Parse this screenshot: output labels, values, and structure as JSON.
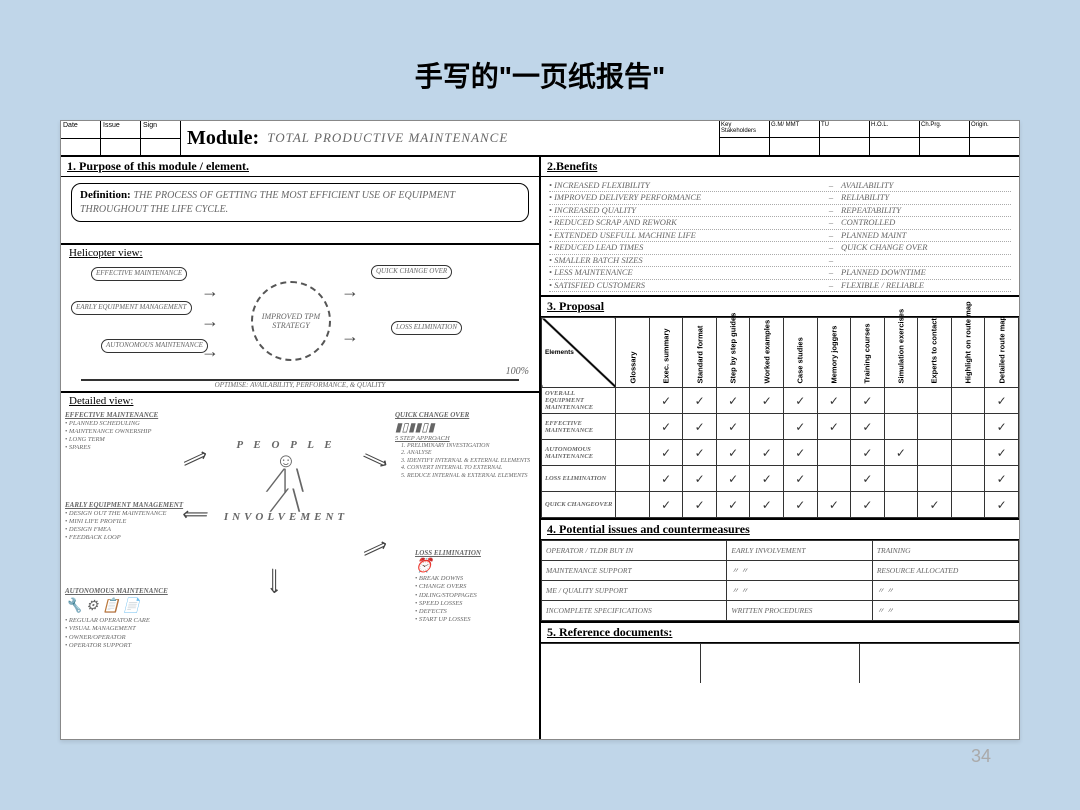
{
  "slide": {
    "title": "手写的\"一页纸报告\"",
    "page_num": "34"
  },
  "header": {
    "left_labels": [
      "Date",
      "Issue",
      "Sign"
    ],
    "module_label": "Module:",
    "module_value": "TOTAL PRODUCTIVE MAINTENANCE",
    "right_labels": [
      "Key Stakeholders",
      "G.M/ MMT",
      "TU",
      "H.O.L.",
      "Ch.Prg.",
      "Origin."
    ]
  },
  "s1": {
    "title": "1. Purpose of this module / element.",
    "def_label": "Definition:",
    "def_text": "THE PROCESS OF GETTING THE MOST EFFICIENT USE OF EQUIPMENT THROUGHOUT THE LIFE CYCLE."
  },
  "helicopter": {
    "title": "Helicopter view:",
    "center": "IMPROVED TPM STRATEGY",
    "bubbles": {
      "b1": "EFFECTIVE MAINTENANCE",
      "b2": "EARLY EQUIPMENT MANAGEMENT",
      "b3": "AUTONOMOUS MAINTENANCE",
      "b4": "QUICK CHANGE OVER",
      "b5": "LOSS ELIMINATION"
    },
    "bottom": "OPTIMISE: AVAILABILITY, PERFORMANCE, & QUALITY",
    "pct": "100%"
  },
  "detailed": {
    "title": "Detailed view:",
    "center_top": "P E O P L E",
    "center_bottom": "INVOLVEMENT",
    "blocks": {
      "nw": {
        "h": "EFFECTIVE MAINTENANCE",
        "items": [
          "PLANNED SCHEDULING",
          "MAINTENANCE OWNERSHIP",
          "LONG TERM",
          "SPARES"
        ]
      },
      "w": {
        "h": "EARLY EQUIPMENT MANAGEMENT",
        "items": [
          "DESIGN OUT THE MAINTENANCE",
          "MINI LIFE PROFILE",
          "DESIGN FMEA",
          "FEEDBACK LOOP"
        ]
      },
      "sw": {
        "h": "AUTONOMOUS MAINTENANCE",
        "items": [
          "REGULAR OPERATOR CARE",
          "VISUAL MANAGEMENT",
          "OWNER/OPERATOR",
          "OPERATOR SUPPORT"
        ]
      },
      "ne": {
        "h": "QUICK CHANGE OVER",
        "sub": "5 STEP APPROACH",
        "items": [
          "PRELIMINARY INVESTIGATION",
          "ANALYSE",
          "IDENTIFY INTERNAL & EXTERNAL ELEMENTS",
          "CONVERT INTERNAL TO EXTERNAL",
          "REDUCE INTERNAL & EXTERNAL ELEMENTS"
        ]
      },
      "se": {
        "h": "LOSS ELIMINATION",
        "items": [
          "BREAK DOWNS",
          "CHANGE OVERS",
          "IDLING/STOPPAGES",
          "SPEED LOSSES",
          "DEFECTS",
          "START UP LOSSES"
        ]
      }
    }
  },
  "benefits": {
    "title": "2.Benefits",
    "rows": [
      {
        "l": "• INCREASED FLEXIBILITY",
        "r": "AVAILABILITY"
      },
      {
        "l": "• IMPROVED DELIVERY PERFORMANCE",
        "r": "RELIABILITY"
      },
      {
        "l": "• INCREASED QUALITY",
        "r": "REPEATABILITY"
      },
      {
        "l": "• REDUCED SCRAP AND REWORK",
        "r": "CONTROLLED"
      },
      {
        "l": "• EXTENDED USEFULL MACHINE LIFE",
        "r": "PLANNED MAINT"
      },
      {
        "l": "• REDUCED LEAD TIMES",
        "r": "QUICK CHANGE OVER"
      },
      {
        "l": "• SMALLER BATCH SIZES",
        "r": ""
      },
      {
        "l": "• LESS MAINTENANCE",
        "r": "PLANNED DOWNTIME"
      },
      {
        "l": "• SATISFIED CUSTOMERS",
        "r": "FLEXIBLE / RELIABLE"
      }
    ]
  },
  "proposal": {
    "title": "3. Proposal",
    "corner": "Elements",
    "cols": [
      "Glossary",
      "Exec. summary",
      "Standard format",
      "Step by step guides",
      "Worked examples",
      "Case studies",
      "Memory joggers",
      "Training courses",
      "Simulation exercises",
      "Experts to contact",
      "Highlight on route map",
      "Detailed route map"
    ],
    "rows": [
      {
        "h": "OVERALL EQUIPMENT MAINTENANCE",
        "c": [
          0,
          1,
          1,
          1,
          1,
          1,
          1,
          1,
          0,
          0,
          0,
          1
        ]
      },
      {
        "h": "EFFECTIVE MAINTENANCE",
        "c": [
          0,
          1,
          1,
          1,
          0,
          1,
          1,
          1,
          0,
          0,
          0,
          1
        ]
      },
      {
        "h": "AUTONOMOUS MAINTENANCE",
        "c": [
          0,
          1,
          1,
          1,
          1,
          1,
          0,
          1,
          1,
          0,
          0,
          1
        ]
      },
      {
        "h": "LOSS ELIMINATION",
        "c": [
          0,
          1,
          1,
          1,
          1,
          1,
          0,
          1,
          0,
          0,
          0,
          1
        ]
      },
      {
        "h": "QUICK CHANGEOVER",
        "c": [
          0,
          1,
          1,
          1,
          1,
          1,
          1,
          1,
          0,
          1,
          0,
          1
        ]
      }
    ]
  },
  "issues": {
    "title": "4. Potential issues and countermeasures",
    "rows": [
      [
        "OPERATOR / TLDR BUY IN",
        "EARLY INVOLVEMENT",
        "TRAINING"
      ],
      [
        "MAINTENANCE SUPPORT",
        "〃        〃",
        "RESOURCE ALLOCATED"
      ],
      [
        "ME / QUALITY SUPPORT",
        "〃        〃",
        "〃        〃"
      ],
      [
        "INCOMPLETE SPECIFICATIONS",
        "WRITTEN PROCEDURES",
        "〃        〃"
      ]
    ]
  },
  "ref": {
    "title": "5. Reference documents:"
  },
  "colors": {
    "bg": "#c0d6e9",
    "page": "#ffffff",
    "line": "#000000",
    "hand": "#666666"
  }
}
